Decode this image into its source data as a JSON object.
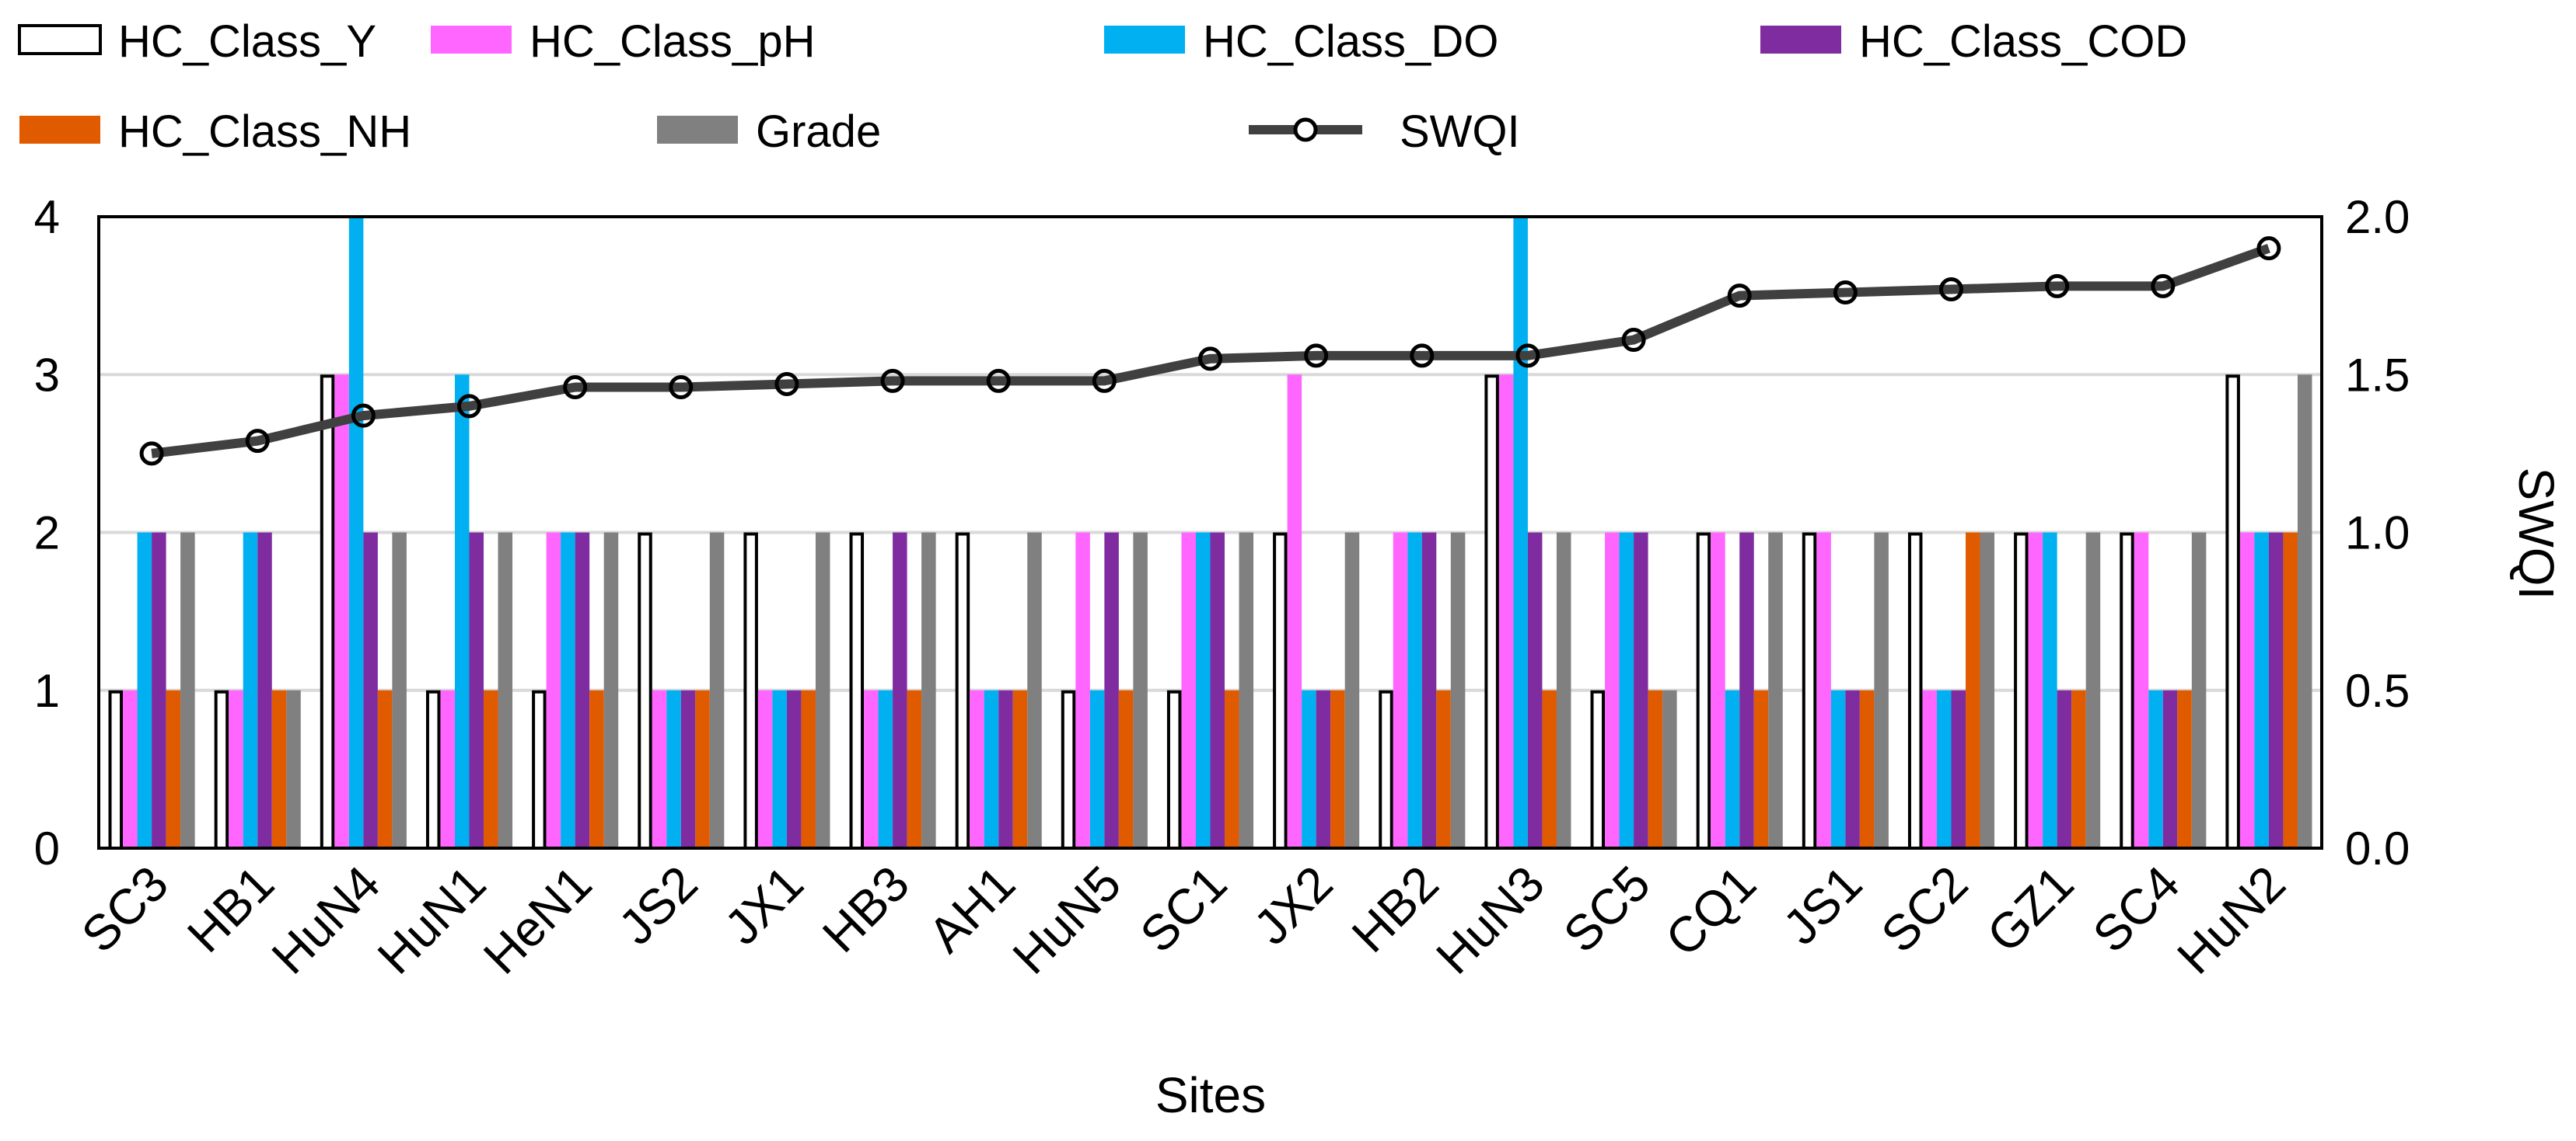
{
  "chart_data": {
    "type": "bar",
    "combo": "bar+line (secondary axis)",
    "xlabel": "Sites",
    "ylabel": "",
    "y2label": "SWQI",
    "ylim": [
      0,
      4
    ],
    "y2lim": [
      0.0,
      2.0
    ],
    "yticks": [
      "0",
      "1",
      "2",
      "3",
      "4"
    ],
    "y2ticks": [
      "0.0",
      "0.5",
      "1.0",
      "1.5",
      "2.0"
    ],
    "grid": true,
    "legend_position": "top",
    "categories": [
      "SC3",
      "HB1",
      "HuN4",
      "HuN1",
      "HeN1",
      "JS2",
      "JX1",
      "HB3",
      "AH1",
      "HuN5",
      "SC1",
      "JX2",
      "HB2",
      "HuN3",
      "SC5",
      "CQ1",
      "JS1",
      "SC2",
      "GZ1",
      "SC4",
      "HuN2"
    ],
    "series": [
      {
        "name": "HC_Class_Y",
        "color": "#ffffff",
        "stroke": "#000000",
        "values": [
          1,
          1,
          3,
          1,
          1,
          2,
          2,
          2,
          2,
          1,
          1,
          2,
          1,
          3,
          1,
          2,
          2,
          2,
          2,
          2,
          3
        ]
      },
      {
        "name": "HC_Class_pH",
        "color": "#ff66ff",
        "values": [
          1,
          1,
          3,
          1,
          2,
          1,
          1,
          1,
          1,
          2,
          2,
          3,
          2,
          3,
          2,
          2,
          2,
          1,
          2,
          2,
          2
        ]
      },
      {
        "name": "HC_Class_DO",
        "color": "#00b0f0",
        "values": [
          2,
          2,
          4,
          3,
          2,
          1,
          1,
          1,
          1,
          1,
          2,
          1,
          2,
          4,
          2,
          1,
          1,
          1,
          2,
          1,
          2
        ]
      },
      {
        "name": "HC_Class_COD",
        "color": "#7f2ca0",
        "values": [
          2,
          2,
          2,
          2,
          2,
          1,
          1,
          2,
          1,
          2,
          2,
          1,
          2,
          2,
          2,
          2,
          1,
          1,
          1,
          1,
          2
        ]
      },
      {
        "name": "HC_Class_NH",
        "color": "#e05a00",
        "values": [
          1,
          1,
          1,
          1,
          1,
          1,
          1,
          1,
          1,
          1,
          1,
          1,
          1,
          1,
          1,
          1,
          1,
          2,
          1,
          1,
          2
        ]
      },
      {
        "name": "Grade",
        "color": "#808080",
        "values": [
          2,
          1,
          2,
          2,
          2,
          2,
          2,
          2,
          2,
          2,
          2,
          2,
          2,
          2,
          1,
          2,
          2,
          2,
          2,
          2,
          3
        ]
      }
    ],
    "line_series": {
      "name": "SWQI",
      "color": "#404040",
      "axis": "right",
      "values": [
        1.25,
        1.29,
        1.37,
        1.4,
        1.46,
        1.46,
        1.47,
        1.48,
        1.48,
        1.48,
        1.55,
        1.56,
        1.56,
        1.56,
        1.61,
        1.75,
        1.76,
        1.77,
        1.78,
        1.78,
        1.9
      ]
    }
  }
}
